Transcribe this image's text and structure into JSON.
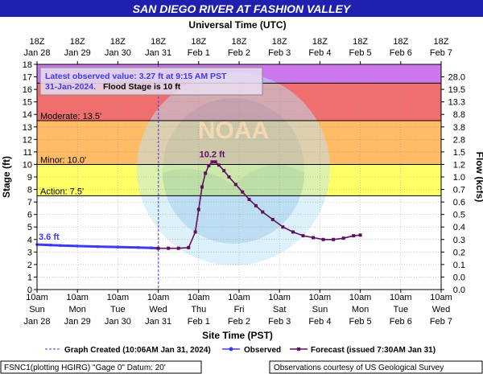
{
  "title": "SAN DIEGO RIVER AT FASHION VALLEY",
  "top_axis_title": "Universal Time (UTC)",
  "bottom_axis_title": "Site Time (PST)",
  "left_axis_title": "Stage (ft)",
  "right_axis_title": "Flow (kcfs)",
  "info_box": {
    "line1": "Latest observed value: 3.27 ft at 9:15 AM PST",
    "line2_date": "31-Jan-2024.",
    "line2_flood": "Flood Stage is 10 ft"
  },
  "legend": {
    "created": "Graph Created (10:06AM Jan 31, 2024)",
    "observed": "Observed",
    "forecast": "Forecast (issued 7:30AM Jan 31)"
  },
  "footer": {
    "left": "FSNC1(plotting HGIRG) \"Gage 0\" Datum: 20'",
    "right": "Observations courtesy of US Geological Survey"
  },
  "labels": {
    "start_value": "3.6 ft",
    "peak_value": "10.2 ft"
  },
  "colors": {
    "observed": "#3b3bf0",
    "forecast": "#5f0f5f",
    "title_bg": "#1f1fb0",
    "major": "#cc77ee",
    "moderate_band": "#f06e6e",
    "minor_band": "#ffbb66",
    "action_band": "#ffff66"
  },
  "chart_data": {
    "type": "line",
    "title": "SAN DIEGO RIVER AT FASHION VALLEY",
    "xlabel": "Site Time (PST)",
    "ylabel": "Stage (ft)",
    "y2label": "Flow (kcfs)",
    "ylim": [
      0,
      18
    ],
    "xlim": [
      "2024-01-28 10:00",
      "2024-02-07 10:00"
    ],
    "grid": true,
    "legend_position": "bottom",
    "x_ticks_bottom": [
      {
        "time": "10am",
        "day": "Sun",
        "date": "Jan 28"
      },
      {
        "time": "10am",
        "day": "Mon",
        "date": "Jan 29"
      },
      {
        "time": "10am",
        "day": "Tue",
        "date": "Jan 30"
      },
      {
        "time": "10am",
        "day": "Wed",
        "date": "Jan 31"
      },
      {
        "time": "10am",
        "day": "Thu",
        "date": "Feb 1"
      },
      {
        "time": "10am",
        "day": "Fri",
        "date": "Feb 2"
      },
      {
        "time": "10am",
        "day": "Sat",
        "date": "Feb 3"
      },
      {
        "time": "10am",
        "day": "Sun",
        "date": "Feb 4"
      },
      {
        "time": "10am",
        "day": "Mon",
        "date": "Feb 5"
      },
      {
        "time": "10am",
        "day": "Tue",
        "date": "Feb 6"
      },
      {
        "time": "10am",
        "day": "Wed",
        "date": "Feb 7"
      }
    ],
    "x_ticks_top": [
      {
        "time": "18Z",
        "date": "Jan 28"
      },
      {
        "time": "18Z",
        "date": "Jan 29"
      },
      {
        "time": "18Z",
        "date": "Jan 30"
      },
      {
        "time": "18Z",
        "date": "Jan 31"
      },
      {
        "time": "18Z",
        "date": "Feb 1"
      },
      {
        "time": "18Z",
        "date": "Feb 2"
      },
      {
        "time": "18Z",
        "date": "Feb 3"
      },
      {
        "time": "18Z",
        "date": "Feb 4"
      },
      {
        "time": "18Z",
        "date": "Feb 5"
      },
      {
        "time": "18Z",
        "date": "Feb 6"
      },
      {
        "time": "18Z",
        "date": "Feb 7"
      }
    ],
    "y_ticks": [
      0,
      1,
      2,
      3,
      4,
      5,
      6,
      7,
      8,
      9,
      10,
      11,
      12,
      13,
      14,
      15,
      16,
      17,
      18
    ],
    "y2_ticks": [
      {
        "stage": 0,
        "label": "0.0"
      },
      {
        "stage": 1,
        "label": "0.0"
      },
      {
        "stage": 2,
        "label": "0.1"
      },
      {
        "stage": 3,
        "label": "0.2"
      },
      {
        "stage": 4,
        "label": "0.3"
      },
      {
        "stage": 5,
        "label": "0.4"
      },
      {
        "stage": 6,
        "label": "0.5"
      },
      {
        "stage": 7,
        "label": "0.6"
      },
      {
        "stage": 8,
        "label": "0.7"
      },
      {
        "stage": 9,
        "label": "1.0"
      },
      {
        "stage": 10,
        "label": "1.2"
      },
      {
        "stage": 11,
        "label": "1.5"
      },
      {
        "stage": 12,
        "label": "2.8"
      },
      {
        "stage": 13,
        "label": "3.8"
      },
      {
        "stage": 14,
        "label": "8.8"
      },
      {
        "stage": 15,
        "label": "13.3"
      },
      {
        "stage": 16,
        "label": "19.5"
      },
      {
        "stage": 17,
        "label": "28.0"
      }
    ],
    "thresholds": [
      {
        "name": "Action",
        "label": "Action: 7.5'",
        "stage": 7.5
      },
      {
        "name": "Minor",
        "label": "Minor: 10.0'",
        "stage": 10.0
      },
      {
        "name": "Moderate",
        "label": "Moderate: 13.5'",
        "stage": 13.5
      },
      {
        "name": "Major",
        "label": "",
        "stage": 16.5
      }
    ],
    "graph_created": "2024-01-31 10:06",
    "series": [
      {
        "name": "Observed",
        "x": [
          "2024-01-28 10:00",
          "2024-01-28 18:00",
          "2024-01-29 00:00",
          "2024-01-29 10:00",
          "2024-01-29 22:00",
          "2024-01-30 10:00",
          "2024-01-30 22:00",
          "2024-01-31 06:00",
          "2024-01-31 10:00"
        ],
        "values": [
          3.6,
          3.55,
          3.52,
          3.48,
          3.43,
          3.4,
          3.36,
          3.33,
          3.3
        ]
      },
      {
        "name": "Forecast",
        "x": [
          "2024-01-31 10:00",
          "2024-01-31 16:00",
          "2024-01-31 22:00",
          "2024-02-01 04:00",
          "2024-02-01 08:00",
          "2024-02-01 10:00",
          "2024-02-01 12:00",
          "2024-02-01 14:00",
          "2024-02-01 16:00",
          "2024-02-01 18:00",
          "2024-02-01 20:00",
          "2024-02-01 22:00",
          "2024-02-02 01:00",
          "2024-02-02 04:00",
          "2024-02-02 08:00",
          "2024-02-02 12:00",
          "2024-02-02 16:00",
          "2024-02-02 20:00",
          "2024-02-03 00:00",
          "2024-02-03 06:00",
          "2024-02-03 12:00",
          "2024-02-03 18:00",
          "2024-02-04 00:00",
          "2024-02-04 06:00",
          "2024-02-04 12:00",
          "2024-02-04 18:00",
          "2024-02-05 00:00",
          "2024-02-05 06:00",
          "2024-02-05 10:00"
        ],
        "values": [
          3.3,
          3.3,
          3.3,
          3.35,
          4.6,
          6.4,
          8.2,
          9.3,
          9.9,
          10.2,
          10.2,
          9.95,
          9.5,
          9.0,
          8.4,
          7.8,
          7.2,
          6.7,
          6.2,
          5.6,
          5.0,
          4.6,
          4.3,
          4.15,
          4.0,
          4.0,
          4.1,
          4.3,
          4.35
        ]
      }
    ]
  }
}
